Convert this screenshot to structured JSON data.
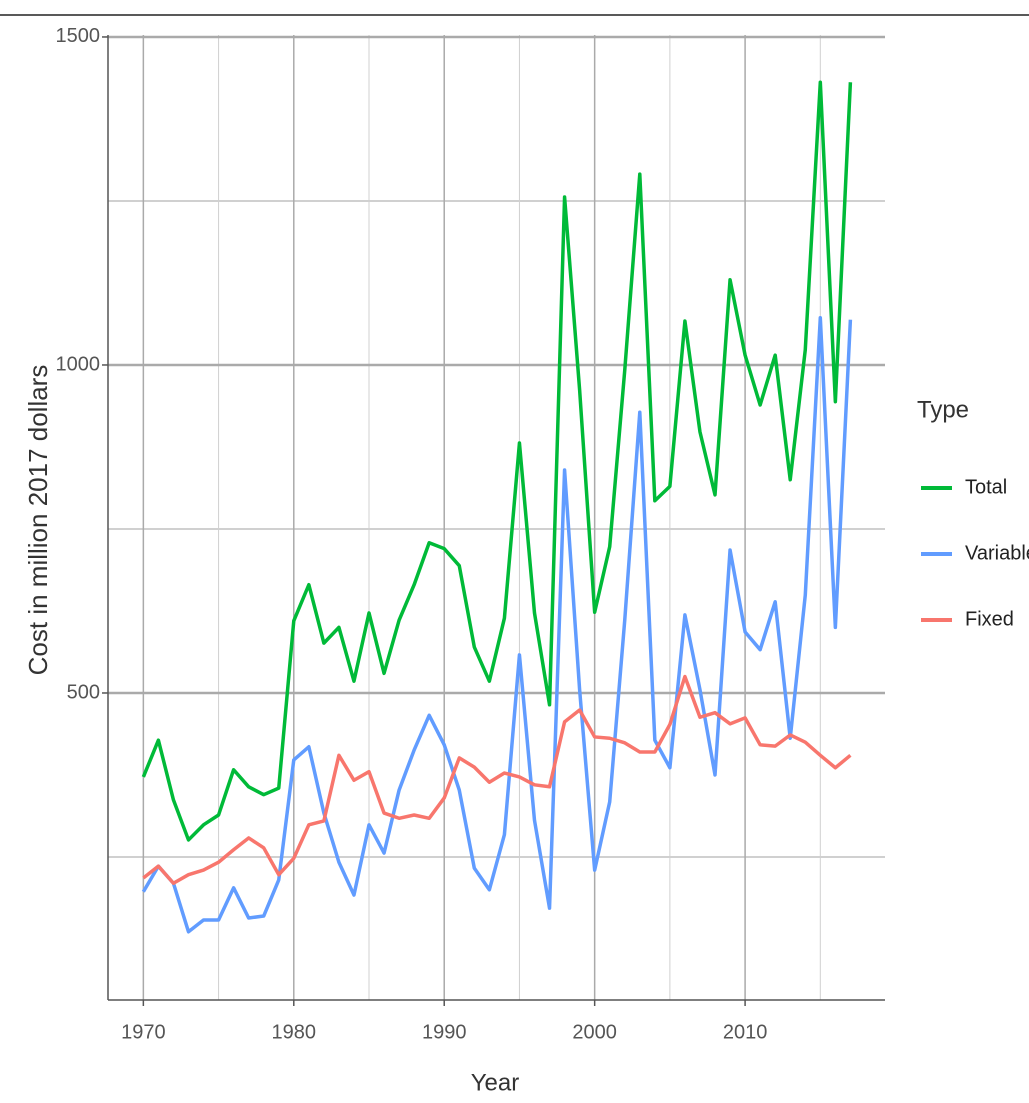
{
  "chart_data": {
    "type": "line",
    "x_label": "Year",
    "y_label": "Cost in million 2017 dollars",
    "legend_title": "Type",
    "legend_position": "right",
    "grid": true,
    "x": [
      1970,
      1971,
      1972,
      1973,
      1974,
      1975,
      1976,
      1977,
      1978,
      1979,
      1980,
      1981,
      1982,
      1983,
      1984,
      1985,
      1986,
      1987,
      1988,
      1989,
      1990,
      1991,
      1992,
      1993,
      1994,
      1995,
      1996,
      1997,
      1998,
      1999,
      2000,
      2001,
      2002,
      2003,
      2004,
      2005,
      2006,
      2007,
      2008,
      2009,
      2010,
      2011,
      2012,
      2013,
      2014,
      2015,
      2016,
      2017
    ],
    "xlim": [
      1967.65,
      2019.3
    ],
    "xticks": [
      1970,
      1980,
      1990,
      2000,
      2010
    ],
    "x_minor_gridlines": [
      1975,
      1985,
      1995,
      2005,
      2015
    ],
    "ylim": [
      32,
      1503
    ],
    "yticks": [
      500,
      1000,
      1500
    ],
    "y_minor_gridlines": [
      250,
      750,
      1250
    ],
    "series": [
      {
        "name": "Total",
        "color": "#00ba38",
        "values": [
          372,
          428,
          337,
          276,
          299,
          314,
          383,
          357,
          345,
          355,
          610,
          665,
          576,
          600,
          518,
          622,
          530,
          611,
          665,
          729,
          720,
          694,
          570,
          518,
          614,
          881,
          622,
          482,
          1256,
          962,
          623,
          723,
          992,
          1291,
          793,
          815,
          1067,
          898,
          802,
          1130,
          1015,
          939,
          1015,
          825,
          1023,
          1431,
          944,
          1431
        ]
      },
      {
        "name": "Variable",
        "color": "#619cff",
        "values": [
          197,
          236,
          210,
          136,
          154,
          154,
          203,
          157,
          160,
          215,
          398,
          418,
          317,
          242,
          192,
          299,
          256,
          352,
          413,
          466,
          421,
          352,
          233,
          200,
          284,
          558,
          306,
          172,
          840,
          505,
          230,
          334,
          611,
          928,
          428,
          386,
          619,
          505,
          375,
          718,
          593,
          566,
          639,
          431,
          649,
          1072,
          600,
          1069
        ]
      },
      {
        "name": "Fixed",
        "color": "#f8766d",
        "values": [
          218,
          236,
          210,
          223,
          230,
          242,
          261,
          279,
          264,
          223,
          248,
          299,
          305,
          405,
          367,
          380,
          317,
          309,
          314,
          309,
          340,
          401,
          387,
          364,
          378,
          372,
          360,
          357,
          456,
          474,
          433,
          431,
          424,
          410,
          410,
          452,
          525,
          463,
          470,
          453,
          462,
          421,
          419,
          436,
          425,
          405,
          386,
          405
        ]
      }
    ]
  }
}
